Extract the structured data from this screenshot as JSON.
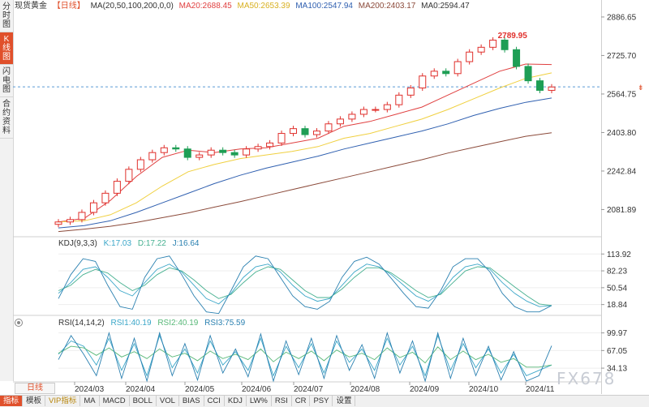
{
  "toolbar": {
    "title": "现货黄金",
    "period": "【日线】",
    "ma_def": "MA(20,50,100,200,0,0)",
    "ma20": "MA20:2688.45",
    "ma50": "MA50:2653.39",
    "ma100": "MA100:2547.94",
    "ma200": "MA200:2403.17",
    "ma0": "MA0:2594.47"
  },
  "sidebar": {
    "items": [
      "分时图",
      "K线图",
      "闪电图",
      "合约资料"
    ]
  },
  "kdj_header": {
    "name": "KDJ(9,3,3)",
    "k": "K:17.03",
    "d": "D:17.22",
    "j": "J:16.64"
  },
  "rsi_header": {
    "name": "RSI(14,14,2)",
    "rsi1": "RSI1:40.19",
    "rsi2": "RSI2:40.19",
    "rsi3": "RSI3:75.59"
  },
  "period_button": "日线",
  "tabs": [
    "指标",
    "模板",
    "VIP指标",
    "MA",
    "MACD",
    "BOLL",
    "VOL",
    "BIAS",
    "CCI",
    "KDJ",
    "LW%",
    "RSI",
    "CR",
    "PSY",
    "设置"
  ],
  "watermark": "FX678",
  "colors": {
    "up": "#e0302c",
    "down": "#1e9e55",
    "ma20": "#e04040",
    "ma50": "#f0d040",
    "ma100": "#3060b0",
    "ma200": "#8b4a3a",
    "k": "#3aa6c8",
    "d": "#46b090",
    "j": "#2a80b0",
    "rsi1": "#3aa6c8",
    "rsi2": "#58b878",
    "rsi3": "#2a80b0"
  },
  "chart_data": [
    {
      "type": "candlestick",
      "y_ticks": [
        "2886.65",
        "2725.70",
        "2564.75",
        "2403.80",
        "2242.84",
        "2081.89"
      ],
      "x_ticks": [
        "2024/03",
        "2024/04",
        "2024/05",
        "2024/06",
        "2024/07",
        "2024/08",
        "2024/09",
        "2024/10",
        "2024/11"
      ],
      "ylim": [
        1975,
        2900
      ],
      "high_label": "2789.95",
      "current_price_line": 2594.47,
      "series": [
        {
          "name": "MA20",
          "values": [
            2030,
            2045,
            2120,
            2220,
            2300,
            2330,
            2320,
            2335,
            2340,
            2360,
            2380,
            2430,
            2450,
            2480,
            2510,
            2560,
            2610,
            2660,
            2690,
            2688
          ]
        },
        {
          "name": "MA50",
          "values": [
            2030,
            2035,
            2060,
            2110,
            2180,
            2240,
            2270,
            2295,
            2310,
            2325,
            2345,
            2380,
            2400,
            2430,
            2460,
            2500,
            2545,
            2590,
            2630,
            2653
          ]
        },
        {
          "name": "MA100",
          "values": [
            2005,
            2015,
            2035,
            2070,
            2110,
            2150,
            2190,
            2225,
            2255,
            2280,
            2305,
            2335,
            2360,
            2385,
            2410,
            2440,
            2475,
            2505,
            2530,
            2548
          ]
        },
        {
          "name": "MA200",
          "values": [
            1990,
            2000,
            2012,
            2028,
            2048,
            2068,
            2092,
            2115,
            2140,
            2165,
            2190,
            2215,
            2240,
            2265,
            2290,
            2318,
            2342,
            2365,
            2388,
            2403
          ]
        }
      ],
      "candles": [
        2030,
        2040,
        2070,
        2110,
        2150,
        2200,
        2250,
        2290,
        2320,
        2340,
        2335,
        2300,
        2310,
        2330,
        2320,
        2310,
        2335,
        2345,
        2360,
        2400,
        2420,
        2395,
        2410,
        2440,
        2460,
        2480,
        2500,
        2500,
        2520,
        2560,
        2590,
        2640,
        2660,
        2650,
        2700,
        2740,
        2760,
        2790,
        2750,
        2680,
        2620,
        2580,
        2594
      ]
    },
    {
      "type": "line",
      "name": "KDJ",
      "y_ticks": [
        "113.92",
        "82.23",
        "50.54",
        "18.84"
      ],
      "ylim": [
        0,
        125
      ],
      "series": [
        {
          "name": "K",
          "values": [
            40,
            60,
            85,
            90,
            70,
            45,
            35,
            60,
            85,
            95,
            80,
            55,
            30,
            20,
            40,
            70,
            90,
            95,
            80,
            55,
            35,
            25,
            30,
            55,
            80,
            95,
            90,
            75,
            55,
            35,
            25,
            40,
            70,
            90,
            95,
            85,
            60,
            40,
            25,
            15,
            17
          ]
        },
        {
          "name": "D",
          "values": [
            45,
            55,
            75,
            85,
            78,
            60,
            45,
            55,
            75,
            88,
            82,
            65,
            45,
            30,
            38,
            60,
            80,
            90,
            85,
            65,
            45,
            32,
            32,
            48,
            70,
            88,
            88,
            78,
            62,
            45,
            32,
            38,
            60,
            82,
            90,
            88,
            70,
            52,
            35,
            20,
            17
          ]
        },
        {
          "name": "J",
          "values": [
            30,
            75,
            105,
            100,
            55,
            15,
            10,
            70,
            105,
            110,
            75,
            35,
            5,
            2,
            45,
            90,
            110,
            105,
            70,
            35,
            15,
            10,
            25,
            70,
            100,
            108,
            95,
            68,
            40,
            15,
            12,
            45,
            90,
            105,
            105,
            80,
            40,
            15,
            5,
            5,
            17
          ]
        }
      ]
    },
    {
      "type": "line",
      "name": "RSI",
      "y_ticks": [
        "99.97",
        "67.05",
        "34.13"
      ],
      "ylim": [
        10,
        110
      ],
      "series": [
        {
          "name": "RSI1",
          "values": [
            60,
            85,
            75,
            40,
            90,
            30,
            80,
            20,
            95,
            35,
            70,
            25,
            85,
            40,
            65,
            30,
            90,
            20,
            75,
            35,
            80,
            25,
            85,
            45,
            70,
            30,
            90,
            40,
            75,
            20,
            95,
            30,
            80,
            35,
            70,
            25,
            60,
            20,
            30,
            40
          ]
        },
        {
          "name": "RSI2",
          "values": [
            62,
            75,
            72,
            58,
            72,
            55,
            65,
            52,
            70,
            55,
            62,
            48,
            66,
            52,
            60,
            50,
            70,
            46,
            64,
            52,
            66,
            48,
            68,
            55,
            62,
            50,
            72,
            54,
            64,
            44,
            74,
            50,
            66,
            50,
            60,
            45,
            52,
            36,
            36,
            40
          ]
        },
        {
          "name": "RSI3",
          "values": [
            50,
            95,
            60,
            20,
            100,
            15,
            90,
            10,
            100,
            20,
            80,
            12,
            95,
            25,
            70,
            18,
            98,
            10,
            85,
            22,
            90,
            15,
            95,
            30,
            78,
            15,
            100,
            25,
            85,
            10,
            100,
            15,
            90,
            20,
            75,
            12,
            65,
            10,
            20,
            76
          ]
        }
      ]
    }
  ]
}
